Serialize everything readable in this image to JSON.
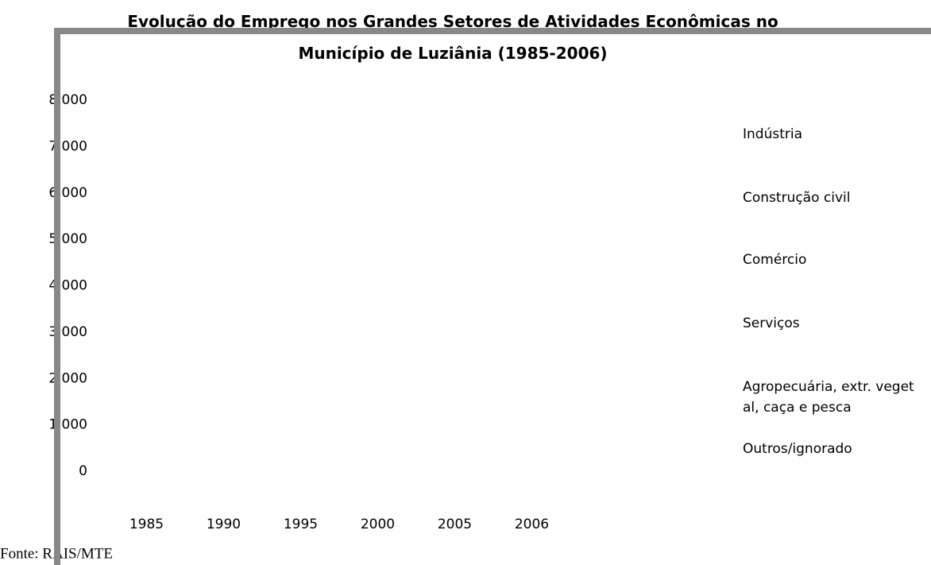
{
  "chart_data": {
    "type": "bar",
    "title": "Evolução do Emprego nos Grandes Setores de Atividades Econômicas no Município de Luziânia (1985-2006)",
    "categories": [
      "1985",
      "1990",
      "1995",
      "2000",
      "2005",
      "2006"
    ],
    "series": [
      {
        "name": "Indústria",
        "values": [
          null,
          null,
          null,
          null,
          null,
          null
        ]
      },
      {
        "name": "Construção civil",
        "values": [
          null,
          null,
          null,
          null,
          null,
          null
        ]
      },
      {
        "name": "Comércio",
        "values": [
          null,
          null,
          null,
          null,
          null,
          null
        ]
      },
      {
        "name": "Serviços",
        "values": [
          null,
          null,
          null,
          null,
          null,
          null
        ]
      },
      {
        "name": "Agropecuária, extr. vegetal, caça e pesca",
        "values": [
          null,
          null,
          null,
          null,
          null,
          null
        ]
      },
      {
        "name": "Outros/ignorado",
        "values": [
          null,
          null,
          null,
          null,
          null,
          null
        ]
      }
    ],
    "ylim": [
      0,
      8000
    ],
    "yticks": [
      0,
      {
        "value": 1000,
        "label": "1 000"
      },
      {
        "value": 2000,
        "label": "2 000"
      },
      {
        "value": 3000,
        "label": "3 000"
      },
      {
        "value": 4000,
        "label": "4 000"
      },
      {
        "value": 5000,
        "label": "5 000"
      },
      {
        "value": 6000,
        "label": "6 000"
      },
      {
        "value": 7000,
        "label": "7 000"
      },
      {
        "value": 8000,
        "label": "8 000"
      }
    ],
    "source": "Fonte: RAIS/MTE"
  }
}
